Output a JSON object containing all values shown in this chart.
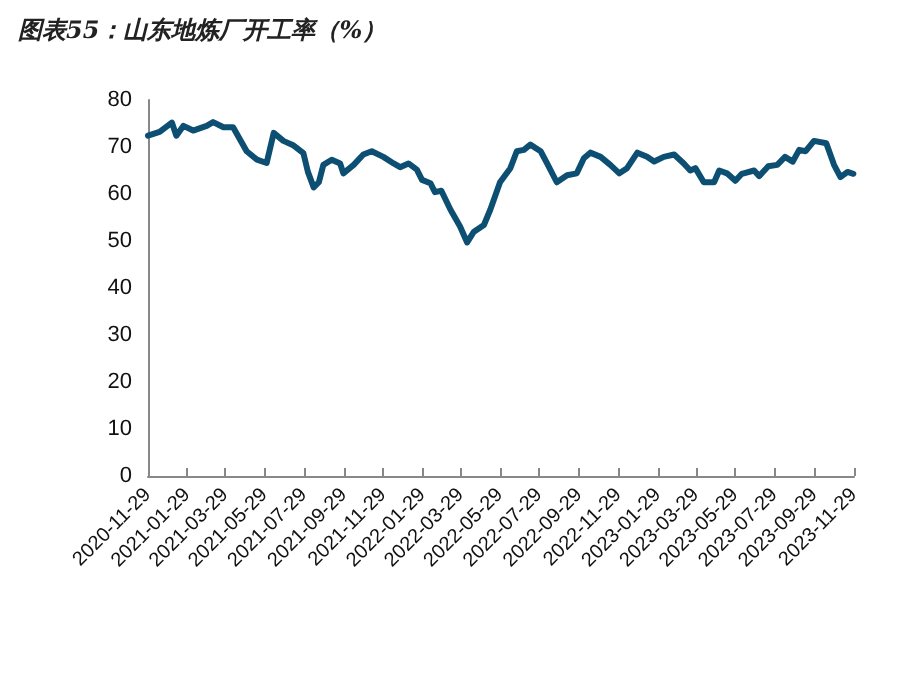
{
  "chart_data": {
    "type": "line",
    "title": "图表55：山东地炼厂开工率（%）",
    "x": [
      "2020-11-29",
      "2020-12-17",
      "2021-01-05",
      "2021-01-12",
      "2021-01-23",
      "2021-02-07",
      "2021-02-28",
      "2021-03-10",
      "2021-03-26",
      "2021-04-10",
      "2021-05-01",
      "2021-05-17",
      "2021-06-01",
      "2021-06-12",
      "2021-06-27",
      "2021-07-13",
      "2021-07-28",
      "2021-08-04",
      "2021-08-13",
      "2021-08-21",
      "2021-08-28",
      "2021-09-10",
      "2021-09-23",
      "2021-09-28",
      "2021-10-14",
      "2021-10-29",
      "2021-11-11",
      "2021-11-29",
      "2021-12-15",
      "2021-12-25",
      "2022-01-07",
      "2022-01-20",
      "2022-01-28",
      "2022-02-10",
      "2022-02-17",
      "2022-02-27",
      "2022-03-13",
      "2022-03-28",
      "2022-04-08",
      "2022-04-18",
      "2022-05-04",
      "2022-05-14",
      "2022-05-29",
      "2022-06-14",
      "2022-06-24",
      "2022-07-05",
      "2022-07-15",
      "2022-07-31",
      "2022-08-10",
      "2022-08-25",
      "2022-09-10",
      "2022-09-25",
      "2022-10-06",
      "2022-10-16",
      "2022-11-01",
      "2022-11-16",
      "2022-11-30",
      "2022-12-12",
      "2022-12-28",
      "2023-01-12",
      "2023-01-23",
      "2023-02-07",
      "2023-02-23",
      "2023-03-10",
      "2023-03-20",
      "2023-03-28",
      "2023-04-10",
      "2023-04-26",
      "2023-05-04",
      "2023-05-16",
      "2023-05-29",
      "2023-06-08",
      "2023-06-27",
      "2023-07-05",
      "2023-07-19",
      "2023-08-02",
      "2023-08-14",
      "2023-08-26",
      "2023-09-05",
      "2023-09-15",
      "2023-09-28",
      "2023-10-17",
      "2023-10-29",
      "2023-11-08",
      "2023-11-19",
      "2023-11-28"
    ],
    "series": [
      {
        "color": "#0d4f73",
        "values": [
          72.4,
          73.2,
          75.2,
          72.4,
          74.5,
          73.5,
          74.5,
          75.3,
          74.2,
          74.2,
          69.1,
          67.3,
          66.6,
          73,
          71.3,
          70.3,
          68.7,
          64.7,
          61.4,
          62.5,
          66.2,
          67.3,
          66.5,
          64.4,
          66.2,
          68.4,
          69.1,
          67.9,
          66.5,
          65.7,
          66.5,
          65.2,
          63,
          62.3,
          60.4,
          60.7,
          56.7,
          53.1,
          49.7,
          51.9,
          53.4,
          56.7,
          62.5,
          65.5,
          69.1,
          69.4,
          70.5,
          69.1,
          66.5,
          62.5,
          64,
          64.4,
          67.6,
          68.8,
          67.9,
          66.2,
          64.4,
          65.5,
          68.8,
          67.9,
          66.9,
          67.9,
          68.4,
          66.5,
          65,
          65.5,
          62.5,
          62.5,
          65,
          64.4,
          62.8,
          64.3,
          65,
          63.8,
          65.9,
          66.2,
          67.9,
          66.9,
          69.4,
          69.1,
          71.3,
          70.8,
          66.2,
          63.6,
          64.7,
          64.3
        ]
      }
    ],
    "xlim": [
      "2020-11-29",
      "2023-11-29"
    ],
    "xticks": [
      "2020-11-29",
      "2021-01-29",
      "2021-03-29",
      "2021-05-29",
      "2021-07-29",
      "2021-09-29",
      "2021-11-29",
      "2022-01-29",
      "2022-03-29",
      "2022-05-29",
      "2022-07-29",
      "2022-09-29",
      "2022-11-29",
      "2023-01-29",
      "2023-03-29",
      "2023-05-29",
      "2023-07-29",
      "2023-09-29",
      "2023-11-29"
    ],
    "ylim": [
      0,
      80
    ],
    "yticks": [
      0,
      10,
      20,
      30,
      40,
      50,
      60,
      70,
      80
    ],
    "grid": false,
    "marker": "none",
    "line_style": "solid"
  }
}
